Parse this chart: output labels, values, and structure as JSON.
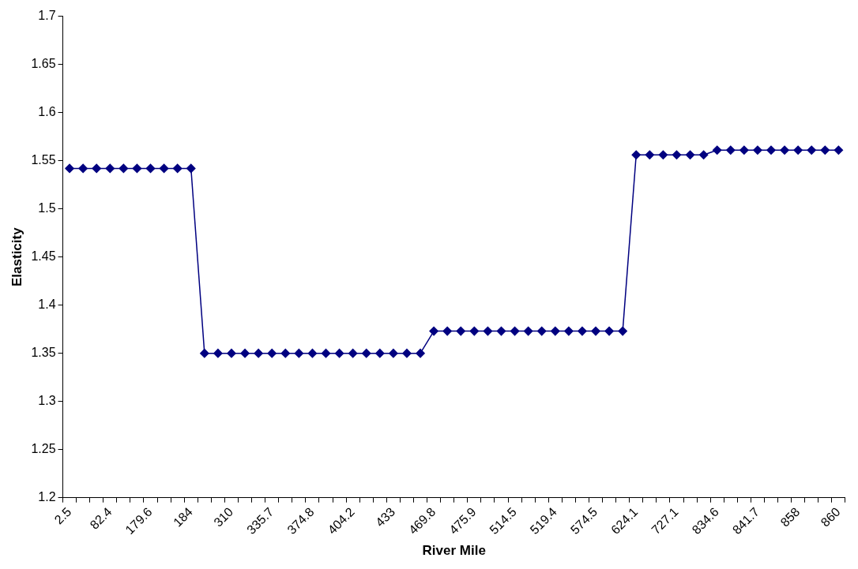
{
  "chart_data": {
    "type": "line",
    "xlabel": "River Mile",
    "ylabel": "Elasticity",
    "categories": [
      "2.5",
      null,
      null,
      "82.4",
      null,
      null,
      "179.6",
      null,
      null,
      "184",
      null,
      null,
      "310",
      null,
      null,
      "335.7",
      null,
      null,
      "374.8",
      null,
      null,
      "404.2",
      null,
      null,
      "433",
      null,
      null,
      "469.8",
      null,
      null,
      "475.9",
      null,
      null,
      "514.5",
      null,
      null,
      "519.4",
      null,
      null,
      "574.5",
      null,
      null,
      "624.1",
      null,
      null,
      "727.1",
      null,
      null,
      "834.6",
      null,
      null,
      "841.7",
      null,
      null,
      "858",
      null,
      null,
      "860"
    ],
    "series": [
      {
        "color": "#000080",
        "values": [
          1.542,
          1.542,
          1.542,
          1.542,
          1.542,
          1.542,
          1.542,
          1.542,
          1.542,
          1.542,
          1.35,
          1.35,
          1.35,
          1.35,
          1.35,
          1.35,
          1.35,
          1.35,
          1.35,
          1.35,
          1.35,
          1.35,
          1.35,
          1.35,
          1.35,
          1.35,
          1.35,
          1.373,
          1.373,
          1.373,
          1.373,
          1.373,
          1.373,
          1.373,
          1.373,
          1.373,
          1.373,
          1.373,
          1.373,
          1.373,
          1.373,
          1.373,
          1.556,
          1.556,
          1.556,
          1.556,
          1.556,
          1.556,
          1.561,
          1.561,
          1.561,
          1.561,
          1.561,
          1.561,
          1.561,
          1.561,
          1.561,
          1.561
        ]
      }
    ],
    "ylim": [
      1.2,
      1.7
    ],
    "yticks": [
      1.2,
      1.25,
      1.3,
      1.35,
      1.4,
      1.45,
      1.5,
      1.55,
      1.6,
      1.65,
      1.7
    ],
    "grid": false,
    "legend": false,
    "marker": "diamond",
    "line_style": "solid"
  }
}
